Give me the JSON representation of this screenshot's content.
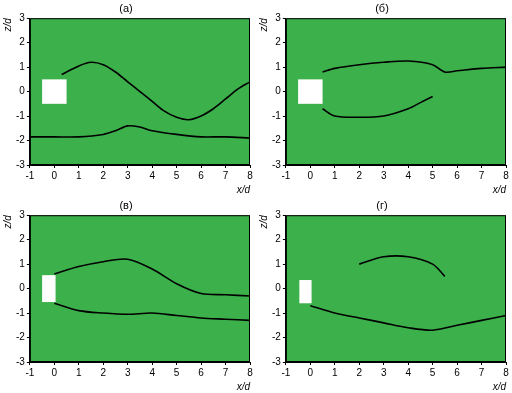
{
  "chart_data": [
    {
      "type": "line",
      "title": "(а)",
      "x_label": "x/d",
      "y_label": "z/d",
      "xlim": [
        -1,
        8
      ],
      "xticks": [
        -1,
        0,
        1,
        2,
        3,
        4,
        5,
        6,
        7,
        8
      ],
      "ylim": [
        -3,
        3
      ],
      "yticks": [
        -3,
        -2,
        -1,
        0,
        1,
        2,
        3
      ],
      "grid": false,
      "obstacle": {
        "x": [
          -0.5,
          0.5
        ],
        "z": [
          -0.5,
          0.5
        ],
        "color": "#ffffff"
      },
      "series": [
        {
          "color": "#000000",
          "x": [
            -1,
            0,
            1,
            2,
            2.5,
            3,
            3.5,
            4,
            5,
            6,
            7,
            8
          ],
          "values": [
            -1.85,
            -1.85,
            -1.85,
            -1.75,
            -1.6,
            -1.4,
            -1.45,
            -1.6,
            -1.75,
            -1.85,
            -1.85,
            -1.9
          ]
        },
        {
          "color": "#000000",
          "x": [
            0.3,
            1,
            1.5,
            2,
            2.5,
            3,
            3.5,
            4,
            4.5,
            5,
            5.5,
            6,
            6.5,
            7,
            7.5,
            8
          ],
          "values": [
            0.7,
            1.05,
            1.2,
            1.1,
            0.8,
            0.4,
            0.0,
            -0.4,
            -0.8,
            -1.05,
            -1.15,
            -1.0,
            -0.7,
            -0.3,
            0.1,
            0.4
          ]
        }
      ]
    },
    {
      "type": "line",
      "title": "(б)",
      "x_label": "x/d",
      "y_label": "z/d",
      "xlim": [
        -1,
        8
      ],
      "xticks": [
        -1,
        0,
        1,
        2,
        3,
        4,
        5,
        6,
        7,
        8
      ],
      "ylim": [
        -3,
        3
      ],
      "yticks": [
        -3,
        -2,
        -1,
        0,
        1,
        2,
        3
      ],
      "grid": false,
      "obstacle": {
        "x": [
          -0.5,
          0.5
        ],
        "z": [
          -0.5,
          0.5
        ],
        "color": "#ffffff"
      },
      "series": [
        {
          "color": "#000000",
          "x": [
            0.5,
            1,
            2,
            3,
            4,
            5,
            5.5,
            6,
            7,
            8
          ],
          "values": [
            0.8,
            0.95,
            1.1,
            1.2,
            1.25,
            1.1,
            0.8,
            0.85,
            0.95,
            1.0
          ]
        },
        {
          "color": "#000000",
          "x": [
            0.5,
            1,
            2,
            3,
            4,
            4.5,
            5
          ],
          "values": [
            -0.7,
            -1.0,
            -1.05,
            -1.0,
            -0.7,
            -0.45,
            -0.2
          ]
        }
      ]
    },
    {
      "type": "line",
      "title": "(в)",
      "x_label": "x/d",
      "y_label": "z/d",
      "xlim": [
        -1,
        8
      ],
      "xticks": [
        -1,
        0,
        1,
        2,
        3,
        4,
        5,
        6,
        7,
        8
      ],
      "ylim": [
        -3,
        3
      ],
      "yticks": [
        -3,
        -2,
        -1,
        0,
        1,
        2,
        3
      ],
      "grid": false,
      "obstacle": {
        "x": [
          -0.5,
          0.05
        ],
        "z": [
          -0.55,
          0.55
        ],
        "color": "#ffffff"
      },
      "series": [
        {
          "color": "#000000",
          "x": [
            0,
            1,
            2,
            3,
            4,
            5,
            6,
            7,
            8
          ],
          "values": [
            0.6,
            0.9,
            1.1,
            1.2,
            0.8,
            0.2,
            -0.2,
            -0.25,
            -0.3
          ]
        },
        {
          "color": "#000000",
          "x": [
            0,
            1,
            2,
            3,
            4,
            5,
            6,
            7,
            8
          ],
          "values": [
            -0.6,
            -0.9,
            -1.0,
            -1.05,
            -1.0,
            -1.1,
            -1.2,
            -1.25,
            -1.3
          ]
        }
      ]
    },
    {
      "type": "line",
      "title": "(г)",
      "x_label": "x/d",
      "y_label": "z/d",
      "xlim": [
        -1,
        8
      ],
      "xticks": [
        -1,
        0,
        1,
        2,
        3,
        4,
        5,
        6,
        7,
        8
      ],
      "ylim": [
        -3,
        3
      ],
      "yticks": [
        -3,
        -2,
        -1,
        0,
        1,
        2,
        3
      ],
      "grid": false,
      "obstacle": {
        "x": [
          -0.45,
          0.05
        ],
        "z": [
          -0.6,
          0.35
        ],
        "color": "#ffffff"
      },
      "series": [
        {
          "color": "#000000",
          "x": [
            2,
            3,
            4,
            5,
            5.5
          ],
          "values": [
            1.0,
            1.3,
            1.3,
            1.0,
            0.5
          ]
        },
        {
          "color": "#000000",
          "x": [
            0,
            1,
            2,
            3,
            4,
            5,
            6,
            7,
            8
          ],
          "values": [
            -0.7,
            -1.0,
            -1.2,
            -1.4,
            -1.6,
            -1.7,
            -1.5,
            -1.3,
            -1.1
          ]
        }
      ]
    }
  ]
}
